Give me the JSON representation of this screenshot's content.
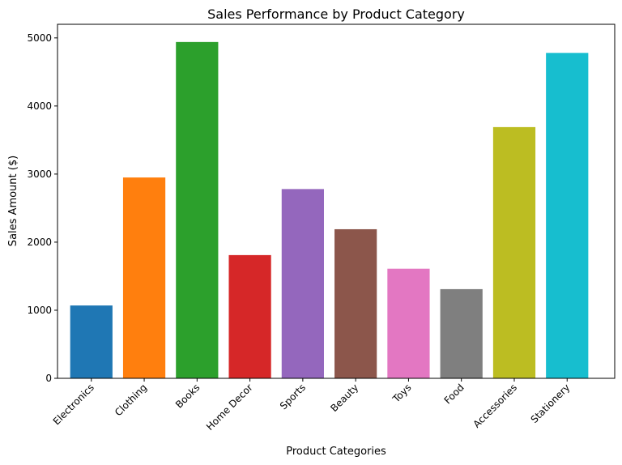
{
  "chart_data": {
    "type": "bar",
    "title": "Sales Performance by Product Category",
    "xlabel": "Product Categories",
    "ylabel": "Sales Amount ($)",
    "categories": [
      "Electronics",
      "Clothing",
      "Books",
      "Home Decor",
      "Sports",
      "Beauty",
      "Toys",
      "Food",
      "Accessories",
      "Stationery"
    ],
    "values": [
      1070,
      2950,
      4940,
      1810,
      2780,
      2190,
      1610,
      1310,
      3690,
      4780
    ],
    "colors": [
      "#1f77b4",
      "#ff7f0e",
      "#2ca02c",
      "#d62728",
      "#9467bd",
      "#8c564b",
      "#e377c2",
      "#7f7f7f",
      "#bcbd22",
      "#17becf"
    ],
    "yticks": [
      0,
      1000,
      2000,
      3000,
      4000,
      5000
    ],
    "ylim": [
      0,
      5200
    ],
    "grid": false,
    "legend": "none"
  }
}
